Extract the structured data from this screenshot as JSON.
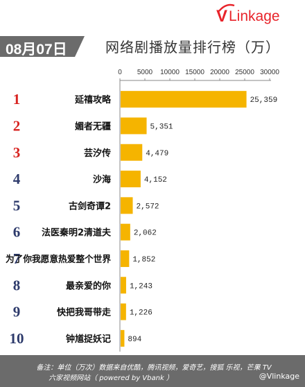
{
  "brand": {
    "name": "VLinkage"
  },
  "header": {
    "date": "08月07日",
    "title": "网络剧播放量排行榜（万）"
  },
  "footer": {
    "note_line1": "备注：单位（万次）数据来自优酷，腾讯视频，爱奇艺，搜狐 乐视，芒果 TV",
    "note_line2": "六家视频网站（ powered by Vbank ）",
    "weibo": "@Vlinkage"
  },
  "colors": {
    "bar": "#f5b400",
    "rank_top": "#d7221f",
    "rank_rest": "#2d3a6b",
    "grey_band": "#6b6b6b"
  },
  "chart_data": {
    "type": "bar",
    "orientation": "horizontal",
    "title": "网络剧播放量排行榜（万）",
    "x_ticks": [
      "0",
      "5000",
      "10000",
      "15000",
      "20000",
      "25000",
      "30000"
    ],
    "xlim": [
      0,
      30000
    ],
    "categories": [
      "延禧攻略",
      "媚者无疆",
      "芸汐传",
      "沙海",
      "古剑奇谭2",
      "法医秦明2清道夫",
      "为了你我愿意热爱整个世界",
      "最亲爱的你",
      "快把我哥带走",
      "钟馗捉妖记"
    ],
    "ranks": [
      "1",
      "2",
      "3",
      "4",
      "5",
      "6",
      "7",
      "8",
      "9",
      "10"
    ],
    "values": [
      25359,
      5351,
      4479,
      4152,
      2572,
      2062,
      1852,
      1243,
      1226,
      894
    ],
    "value_labels": [
      "25,359",
      "5,351",
      "4,479",
      "4,152",
      "2,572",
      "2,062",
      "1,852",
      "1,243",
      "1,226",
      "894"
    ]
  }
}
